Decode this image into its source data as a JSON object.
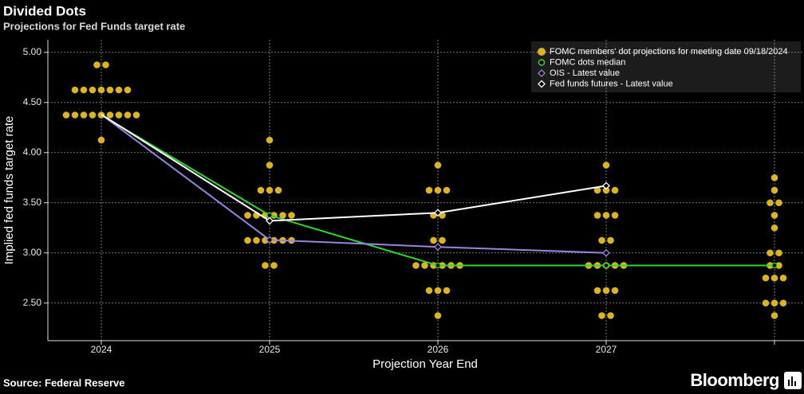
{
  "chart_data": {
    "type": "dot-plot",
    "title": "Divided Dots",
    "subtitle": "Projections for Fed Funds target rate",
    "x_label": "Projection Year End",
    "y_label": "Implied fed funds target rate",
    "source": "Source: Federal Reserve",
    "brand": "Bloomberg",
    "categories": [
      "2024",
      "2025",
      "2026",
      "2027",
      null
    ],
    "ylim": [
      2.125,
      5.125
    ],
    "yticks": [
      {
        "value": 2.5,
        "label": "2.50"
      },
      {
        "value": 3,
        "label": "3.00"
      },
      {
        "value": 3.5,
        "label": "3.50"
      },
      {
        "value": 4,
        "label": "4.00"
      },
      {
        "value": 4.5,
        "label": "4.50"
      },
      {
        "value": 5,
        "label": "5.00"
      }
    ],
    "grid": true,
    "legend": "top-right",
    "dots": {
      "name": "FOMC members' dot projections for meeting date 09/18/2024",
      "color": "#dcb51e",
      "values": [
        [
          4.875,
          4.875,
          4.625,
          4.625,
          4.625,
          4.625,
          4.625,
          4.625,
          4.625,
          4.375,
          4.375,
          4.375,
          4.375,
          4.375,
          4.375,
          4.375,
          4.375,
          4.375,
          4.125
        ],
        [
          4.125,
          3.875,
          3.625,
          3.625,
          3.625,
          3.375,
          3.375,
          3.375,
          3.375,
          3.375,
          3.375,
          3.125,
          3.125,
          3.125,
          3.125,
          3.125,
          3.125,
          2.875,
          2.875
        ],
        [
          3.875,
          3.625,
          3.625,
          3.625,
          3.375,
          3.375,
          3.125,
          3.125,
          2.875,
          2.875,
          2.875,
          2.875,
          2.875,
          2.875,
          2.625,
          2.625,
          2.625,
          2.375
        ],
        [
          3.875,
          3.625,
          3.625,
          3.625,
          3.375,
          3.375,
          3.375,
          3.125,
          3.125,
          2.875,
          2.875,
          2.875,
          2.875,
          2.875,
          2.625,
          2.625,
          2.625,
          2.375,
          2.375
        ],
        [
          3.75,
          3.625,
          3.5,
          3.5,
          3.375,
          3.25,
          3,
          3,
          2.875,
          2.875,
          2.75,
          2.75,
          2.75,
          2.5,
          2.5,
          2.5,
          2.375
        ]
      ]
    },
    "series": [
      {
        "name": "FOMC dots median",
        "color": "#2bd92b",
        "marker": "circle",
        "values": [
          4.375,
          3.375,
          2.875,
          2.875,
          2.875
        ]
      },
      {
        "name": "OIS - Latest value",
        "color": "#9a84e0",
        "marker": "diamond",
        "values": [
          4.38,
          3.13,
          3.06,
          3.0,
          null
        ]
      },
      {
        "name": "Fed funds futures - Latest value",
        "color": "#ffffff",
        "marker": "diamond",
        "values": [
          4.38,
          3.32,
          3.4,
          3.67,
          null
        ]
      }
    ]
  }
}
